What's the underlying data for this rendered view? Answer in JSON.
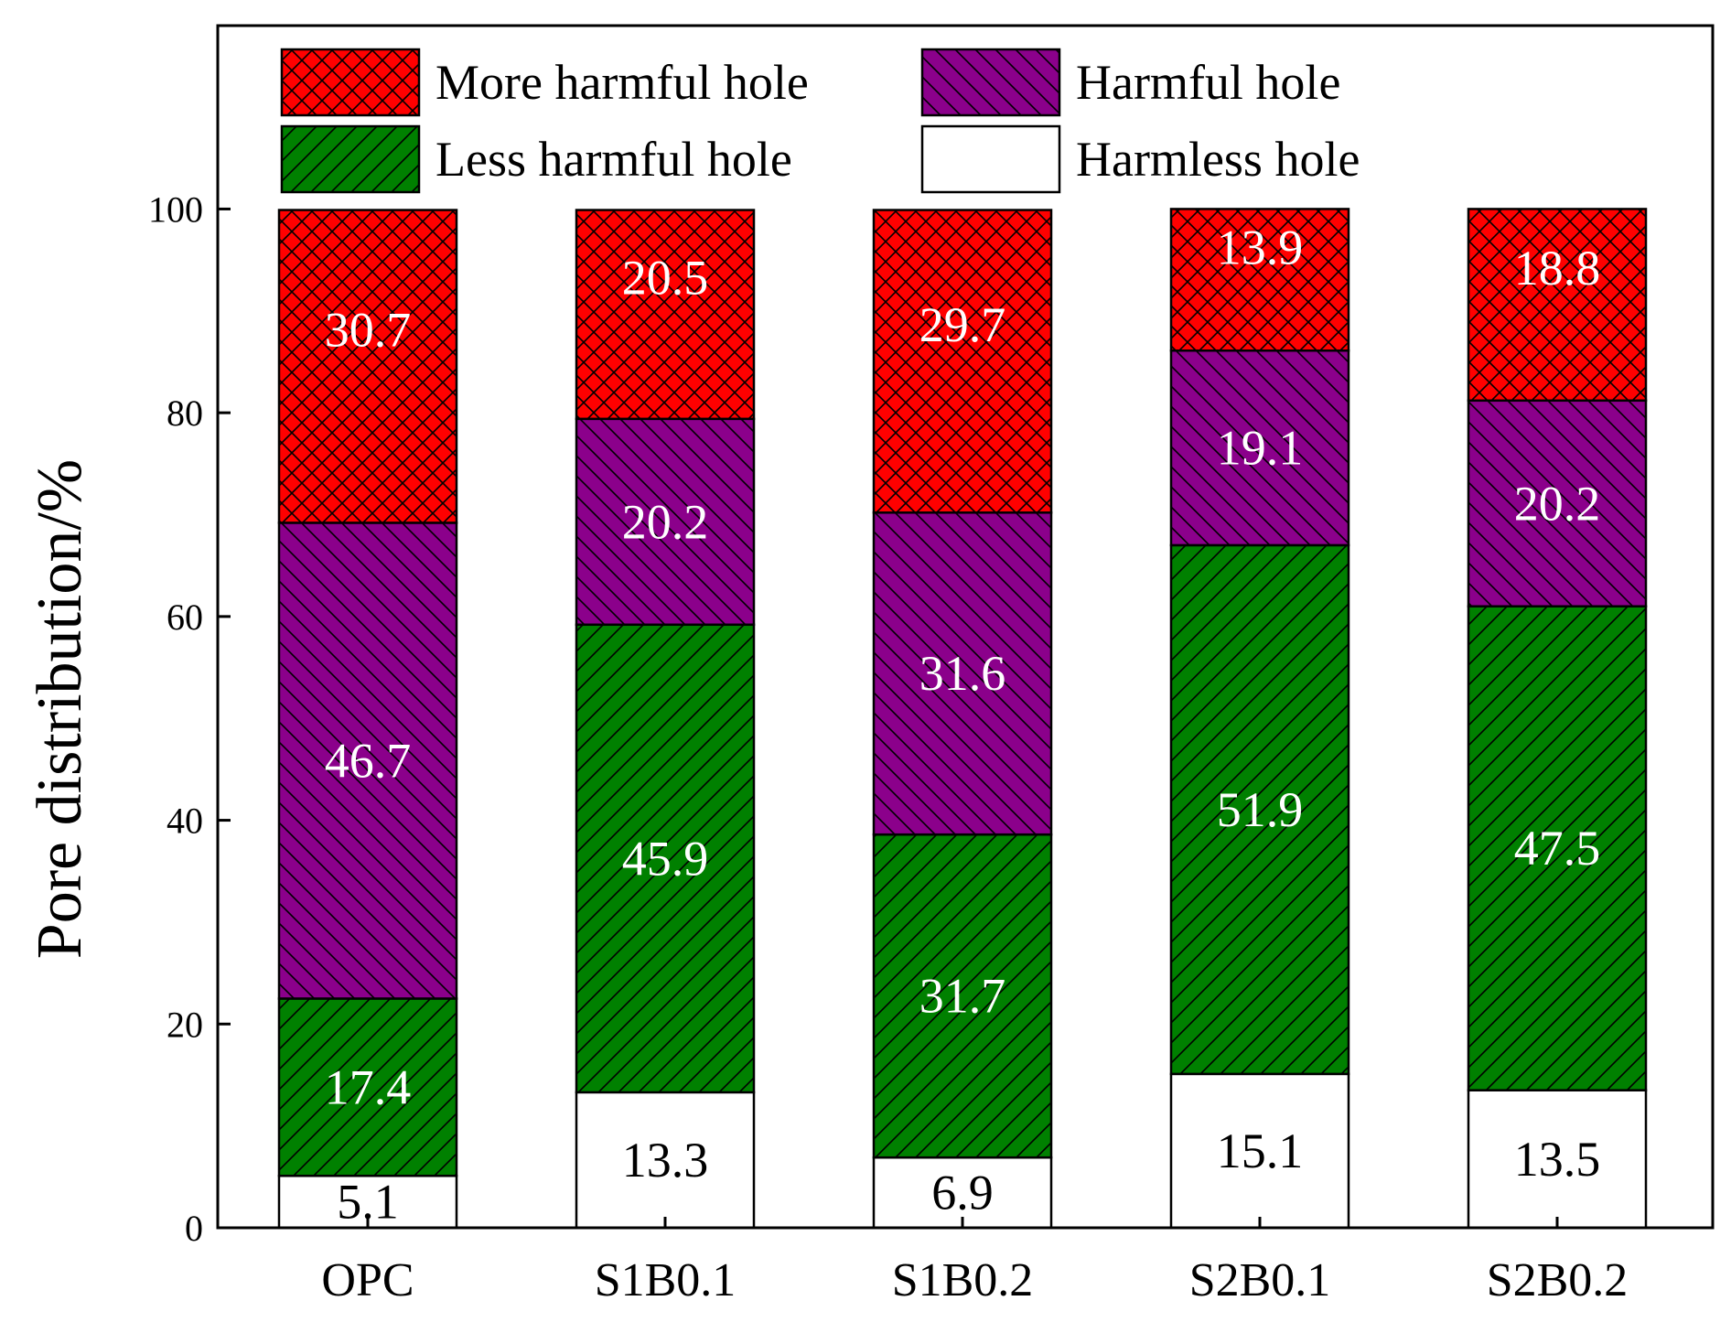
{
  "chart_data": {
    "type": "bar",
    "stacked": true,
    "title": "",
    "xlabel": "",
    "ylabel": "Pore distribution/%",
    "ylim": [
      0,
      118
    ],
    "yticks": [
      0,
      20,
      40,
      60,
      80,
      100
    ],
    "categories": [
      "OPC",
      "S1B0.1",
      "S1B0.2",
      "S2B0.1",
      "S2B0.2"
    ],
    "legend_position": "top",
    "series": [
      {
        "name": "Harmless hole",
        "color": "#ffffff",
        "pattern": "none",
        "label_color": "#000000",
        "values": [
          5.1,
          13.3,
          6.9,
          15.1,
          13.5
        ]
      },
      {
        "name": "Less harmful hole",
        "color": "#008000",
        "pattern": "diagonal-up",
        "label_color": "#ffffff",
        "values": [
          17.4,
          45.9,
          31.7,
          51.9,
          47.5
        ]
      },
      {
        "name": "Harmful hole",
        "color": "#8b008b",
        "pattern": "diagonal-down",
        "label_color": "#ffffff",
        "values": [
          46.7,
          20.2,
          31.6,
          19.1,
          20.2
        ]
      },
      {
        "name": "More harmful hole",
        "color": "#ff0000",
        "pattern": "crosshatch",
        "label_color": "#ffffff",
        "values": [
          30.7,
          20.5,
          29.7,
          13.9,
          18.8
        ]
      }
    ],
    "legend_order": [
      "More harmful hole",
      "Harmful hole",
      "Less harmful hole",
      "Harmless hole"
    ]
  }
}
